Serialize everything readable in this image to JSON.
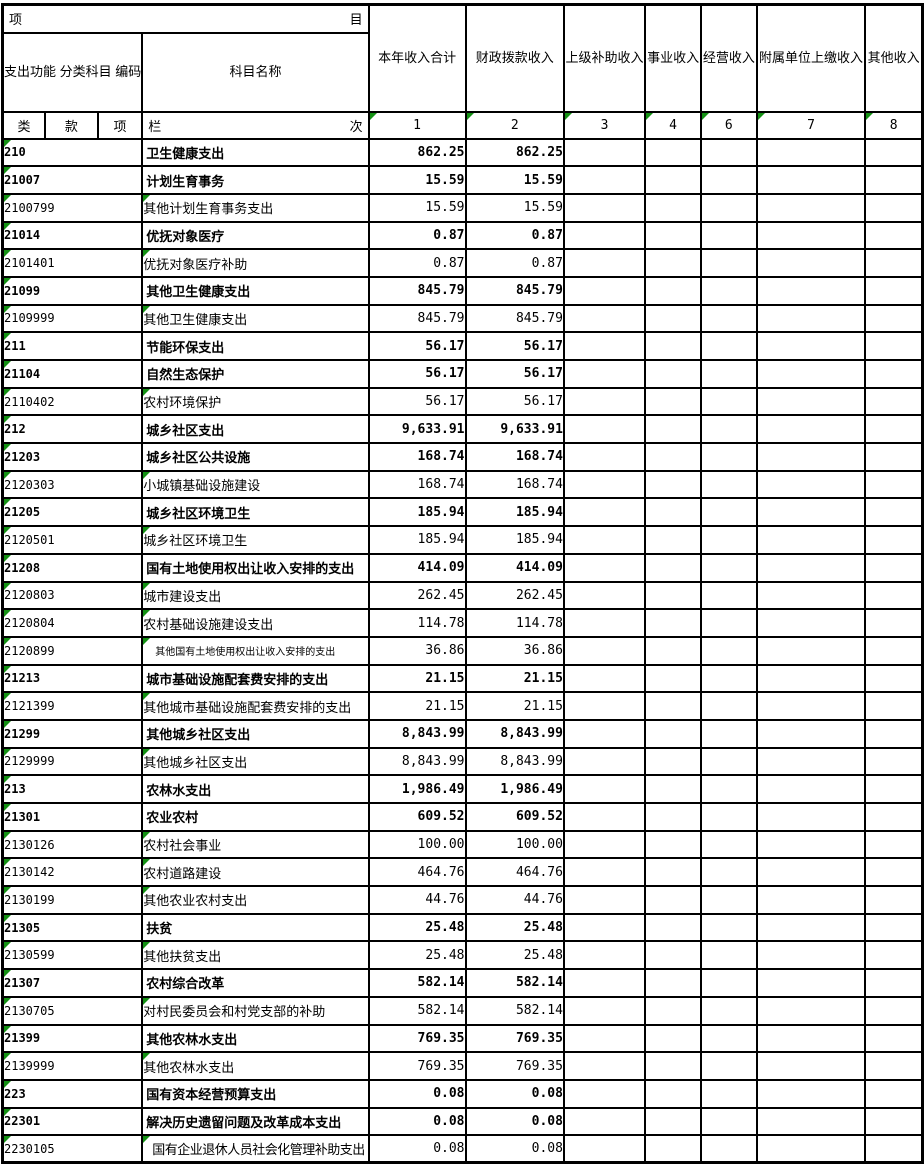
{
  "colors": {
    "grid_line": "#000000",
    "background": "#ffffff",
    "flag_green": "#149114"
  },
  "header": {
    "row1_left": "项",
    "row1_right": "目",
    "code_group_label": "支出功能\n分类科目\n编码",
    "subject_label": "科目名称",
    "value_columns": [
      {
        "label": "本年收入合计"
      },
      {
        "label": "财政拨款收入"
      },
      {
        "label": "上级补助收入"
      },
      {
        "label": "事业收入"
      },
      {
        "label": "经营收入"
      },
      {
        "label": "附属单位上缴收入"
      },
      {
        "label": "其他收入"
      }
    ],
    "sub_labels": {
      "lei": "类",
      "kuan": "款",
      "xiang": "项"
    },
    "lan_label": "栏",
    "ci_label": "次",
    "column_numbers": [
      "1",
      "2",
      "3",
      "4",
      "6",
      "7",
      "8"
    ]
  },
  "rows": [
    {
      "code": "210",
      "name": "卫生健康支出",
      "total": "862.25",
      "fiscal": "862.25",
      "bold": true
    },
    {
      "code": "21007",
      "name": "计划生育事务",
      "total": "15.59",
      "fiscal": "15.59",
      "bold": true
    },
    {
      "code": "2100799",
      "name": "其他计划生育事务支出",
      "total": "15.59",
      "fiscal": "15.59",
      "bold": false
    },
    {
      "code": "21014",
      "name": "优抚对象医疗",
      "total": "0.87",
      "fiscal": "0.87",
      "bold": true
    },
    {
      "code": "2101401",
      "name": "优抚对象医疗补助",
      "total": "0.87",
      "fiscal": "0.87",
      "bold": false
    },
    {
      "code": "21099",
      "name": "其他卫生健康支出",
      "total": "845.79",
      "fiscal": "845.79",
      "bold": true
    },
    {
      "code": "2109999",
      "name": "其他卫生健康支出",
      "total": "845.79",
      "fiscal": "845.79",
      "bold": false
    },
    {
      "code": "211",
      "name": "节能环保支出",
      "total": "56.17",
      "fiscal": "56.17",
      "bold": true
    },
    {
      "code": "21104",
      "name": "自然生态保护",
      "total": "56.17",
      "fiscal": "56.17",
      "bold": true
    },
    {
      "code": "2110402",
      "name": "农村环境保护",
      "total": "56.17",
      "fiscal": "56.17",
      "bold": false
    },
    {
      "code": "212",
      "name": "城乡社区支出",
      "total": "9,633.91",
      "fiscal": "9,633.91",
      "bold": true
    },
    {
      "code": "21203",
      "name": "城乡社区公共设施",
      "total": "168.74",
      "fiscal": "168.74",
      "bold": true
    },
    {
      "code": "2120303",
      "name": "小城镇基础设施建设",
      "total": "168.74",
      "fiscal": "168.74",
      "bold": false
    },
    {
      "code": "21205",
      "name": "城乡社区环境卫生",
      "total": "185.94",
      "fiscal": "185.94",
      "bold": true
    },
    {
      "code": "2120501",
      "name": "城乡社区环境卫生",
      "total": "185.94",
      "fiscal": "185.94",
      "bold": false
    },
    {
      "code": "21208",
      "name": "国有土地使用权出让收入安排的支出",
      "total": "414.09",
      "fiscal": "414.09",
      "bold": true
    },
    {
      "code": "2120803",
      "name": "城市建设支出",
      "total": "262.45",
      "fiscal": "262.45",
      "bold": false
    },
    {
      "code": "2120804",
      "name": "农村基础设施建设支出",
      "total": "114.78",
      "fiscal": "114.78",
      "bold": false
    },
    {
      "code": "2120899",
      "name": "其他国有土地使用权出让收入安排的支出",
      "total": "36.86",
      "fiscal": "36.86",
      "bold": false,
      "size": "small"
    },
    {
      "code": "21213",
      "name": "城市基础设施配套费安排的支出",
      "total": "21.15",
      "fiscal": "21.15",
      "bold": true
    },
    {
      "code": "2121399",
      "name": "其他城市基础设施配套费安排的支出",
      "total": "21.15",
      "fiscal": "21.15",
      "bold": false
    },
    {
      "code": "21299",
      "name": "其他城乡社区支出",
      "total": "8,843.99",
      "fiscal": "8,843.99",
      "bold": true
    },
    {
      "code": "2129999",
      "name": "其他城乡社区支出",
      "total": "8,843.99",
      "fiscal": "8,843.99",
      "bold": false
    },
    {
      "code": "213",
      "name": "农林水支出",
      "total": "1,986.49",
      "fiscal": "1,986.49",
      "bold": true
    },
    {
      "code": "21301",
      "name": "农业农村",
      "total": "609.52",
      "fiscal": "609.52",
      "bold": true
    },
    {
      "code": "2130126",
      "name": "农村社会事业",
      "total": "100.00",
      "fiscal": "100.00",
      "bold": false
    },
    {
      "code": "2130142",
      "name": "农村道路建设",
      "total": "464.76",
      "fiscal": "464.76",
      "bold": false
    },
    {
      "code": "2130199",
      "name": "其他农业农村支出",
      "total": "44.76",
      "fiscal": "44.76",
      "bold": false
    },
    {
      "code": "21305",
      "name": "扶贫",
      "total": "25.48",
      "fiscal": "25.48",
      "bold": true
    },
    {
      "code": "2130599",
      "name": "其他扶贫支出",
      "total": "25.48",
      "fiscal": "25.48",
      "bold": false
    },
    {
      "code": "21307",
      "name": "农村综合改革",
      "total": "582.14",
      "fiscal": "582.14",
      "bold": true
    },
    {
      "code": "2130705",
      "name": "对村民委员会和村党支部的补助",
      "total": "582.14",
      "fiscal": "582.14",
      "bold": false
    },
    {
      "code": "21399",
      "name": "其他农林水支出",
      "total": "769.35",
      "fiscal": "769.35",
      "bold": true
    },
    {
      "code": "2139999",
      "name": "其他农林水支出",
      "total": "769.35",
      "fiscal": "769.35",
      "bold": false
    },
    {
      "code": "223",
      "name": "国有资本经营预算支出",
      "total": "0.08",
      "fiscal": "0.08",
      "bold": true
    },
    {
      "code": "22301",
      "name": "解决历史遗留问题及改革成本支出",
      "total": "0.08",
      "fiscal": "0.08",
      "bold": true
    },
    {
      "code": "2230105",
      "name": "国有企业退休人员社会化管理补助支出",
      "total": "0.08",
      "fiscal": "0.08",
      "bold": false,
      "size": "tight"
    }
  ]
}
